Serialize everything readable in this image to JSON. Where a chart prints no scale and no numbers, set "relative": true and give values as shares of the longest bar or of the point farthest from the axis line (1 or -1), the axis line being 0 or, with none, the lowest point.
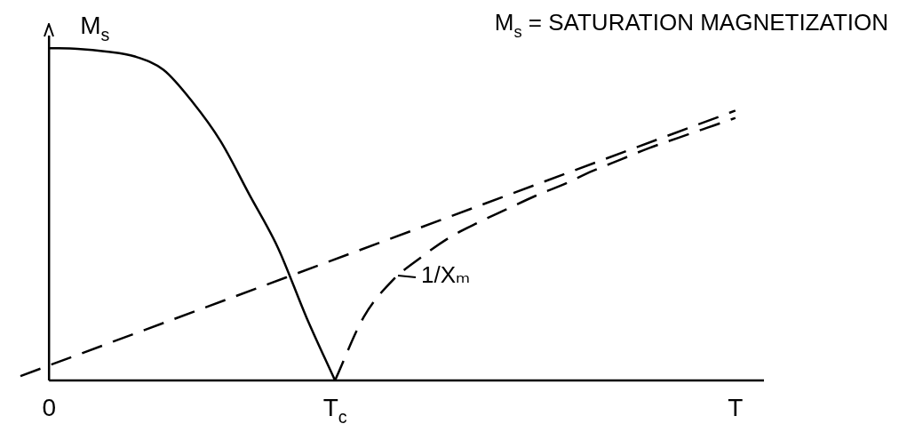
{
  "chart_data": {
    "type": "line",
    "title": "M$_{s}$ = SATURATION MAGNETIZATION",
    "ylabel": "M$_{s}$",
    "relative": true,
    "marker": "none",
    "categories": [
      null,
      "0",
      null,
      null,
      null,
      null,
      null,
      null,
      null,
      null,
      null,
      "T$_{c}$",
      null,
      null,
      null,
      null,
      null,
      null,
      null,
      null,
      null,
      null,
      null,
      null,
      null,
      "T",
      null
    ],
    "annotations": [
      "1/Xₘ"
    ],
    "series": [
      {
        "color": "#000000",
        "line_style": "solid",
        "values": [
          null,
          1,
          0.998,
          0.99,
          0.975,
          0.935,
          0.84,
          0.72,
          0.56,
          0.4,
          0.19,
          0,
          null,
          null,
          null,
          null,
          null,
          null,
          null,
          null,
          null,
          null,
          null,
          null,
          null,
          null,
          null
        ]
      },
      {
        "color": "#000000",
        "line_style": "dashed",
        "values": [
          0.013,
          null,
          null,
          null,
          null,
          null,
          null,
          null,
          null,
          null,
          null,
          null,
          null,
          null,
          null,
          null,
          null,
          null,
          null,
          null,
          null,
          null,
          null,
          null,
          null,
          0.812,
          null
        ]
      },
      {
        "color": "#000000",
        "line_style": "dashed",
        "values": [
          null,
          null,
          null,
          null,
          null,
          null,
          null,
          null,
          null,
          null,
          null,
          0,
          0.19,
          0.3,
          0.37,
          0.43,
          0.475,
          0.515,
          0.555,
          0.59,
          0.63,
          0.665,
          0.7,
          0.73,
          0.76,
          0.79,
          null
        ]
      }
    ]
  }
}
